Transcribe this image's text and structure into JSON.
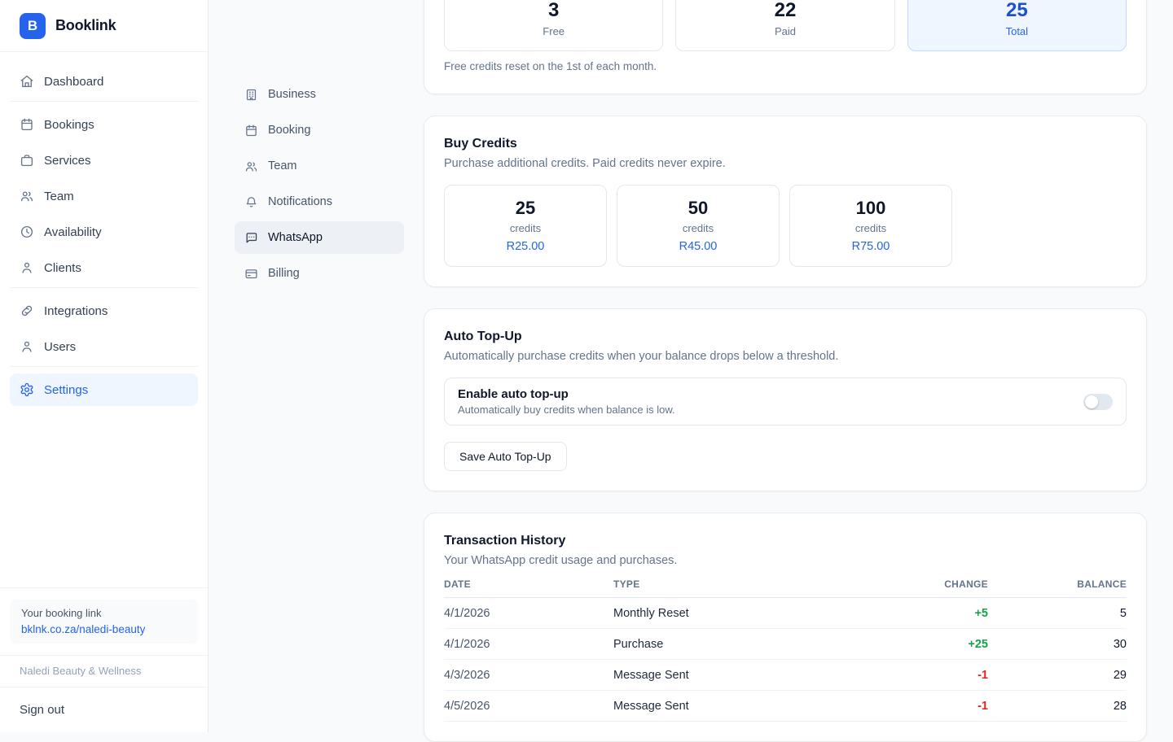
{
  "brand": {
    "name": "Booklink",
    "logo_letter": "B"
  },
  "sidebar": {
    "groups": [
      {
        "items": [
          {
            "label": "Dashboard",
            "icon": "home",
            "active": false
          }
        ]
      },
      {
        "items": [
          {
            "label": "Bookings",
            "icon": "calendar",
            "active": false
          },
          {
            "label": "Services",
            "icon": "briefcase",
            "active": false
          },
          {
            "label": "Team",
            "icon": "users",
            "active": false
          },
          {
            "label": "Availability",
            "icon": "clock",
            "active": false
          },
          {
            "label": "Clients",
            "icon": "user",
            "active": false
          }
        ]
      },
      {
        "items": [
          {
            "label": "Integrations",
            "icon": "link",
            "active": false
          },
          {
            "label": "Users",
            "icon": "user",
            "active": false
          }
        ]
      },
      {
        "items": [
          {
            "label": "Settings",
            "icon": "gear",
            "active": true
          }
        ]
      }
    ],
    "booking_link": {
      "label": "Your booking link",
      "url": "bklnk.co.za/naledi-beauty"
    },
    "business_name": "Naledi Beauty & Wellness",
    "sign_out_label": "Sign out"
  },
  "settings_nav": {
    "items": [
      {
        "label": "Business",
        "icon": "building",
        "active": false
      },
      {
        "label": "Booking",
        "icon": "calendar",
        "active": false
      },
      {
        "label": "Team",
        "icon": "users",
        "active": false
      },
      {
        "label": "Notifications",
        "icon": "bell",
        "active": false
      },
      {
        "label": "WhatsApp",
        "icon": "chat-bubble",
        "active": true
      },
      {
        "label": "Billing",
        "icon": "credit-card",
        "active": false
      }
    ]
  },
  "credits_summary": {
    "stats": [
      {
        "value": "3",
        "label": "Free",
        "highlight": false
      },
      {
        "value": "22",
        "label": "Paid",
        "highlight": false
      },
      {
        "value": "25",
        "label": "Total",
        "highlight": true
      }
    ],
    "note": "Free credits reset on the 1st of each month."
  },
  "buy_credits": {
    "title": "Buy Credits",
    "subtitle": "Purchase additional credits. Paid credits never expire.",
    "packs": [
      {
        "credits": "25",
        "unit": "credits",
        "price": "R25.00"
      },
      {
        "credits": "50",
        "unit": "credits",
        "price": "R45.00"
      },
      {
        "credits": "100",
        "unit": "credits",
        "price": "R75.00"
      }
    ]
  },
  "auto_top_up": {
    "title": "Auto Top-Up",
    "subtitle": "Automatically purchase credits when your balance drops below a threshold.",
    "toggle": {
      "label": "Enable auto top-up",
      "description": "Automatically buy credits when balance is low.",
      "enabled": false
    },
    "save_label": "Save Auto Top-Up"
  },
  "transactions": {
    "title": "Transaction History",
    "subtitle": "Your WhatsApp credit usage and purchases.",
    "columns": [
      "DATE",
      "TYPE",
      "CHANGE",
      "BALANCE"
    ],
    "rows": [
      {
        "date": "4/1/2026",
        "type": "Monthly Reset",
        "change": "+5",
        "change_dir": "positive",
        "balance": "5"
      },
      {
        "date": "4/1/2026",
        "type": "Purchase",
        "change": "+25",
        "change_dir": "positive",
        "balance": "30"
      },
      {
        "date": "4/3/2026",
        "type": "Message Sent",
        "change": "-1",
        "change_dir": "negative",
        "balance": "29"
      },
      {
        "date": "4/5/2026",
        "type": "Message Sent",
        "change": "-1",
        "change_dir": "negative",
        "balance": "28"
      }
    ]
  },
  "colors": {
    "accent": "#2563eb",
    "accent_dark": "#1d4ed8",
    "highlight_bg": "#eff6ff",
    "highlight_border": "#bfdbfe",
    "positive": "#16a34a",
    "negative": "#dc2626",
    "page_bg": "#f8fafc"
  }
}
